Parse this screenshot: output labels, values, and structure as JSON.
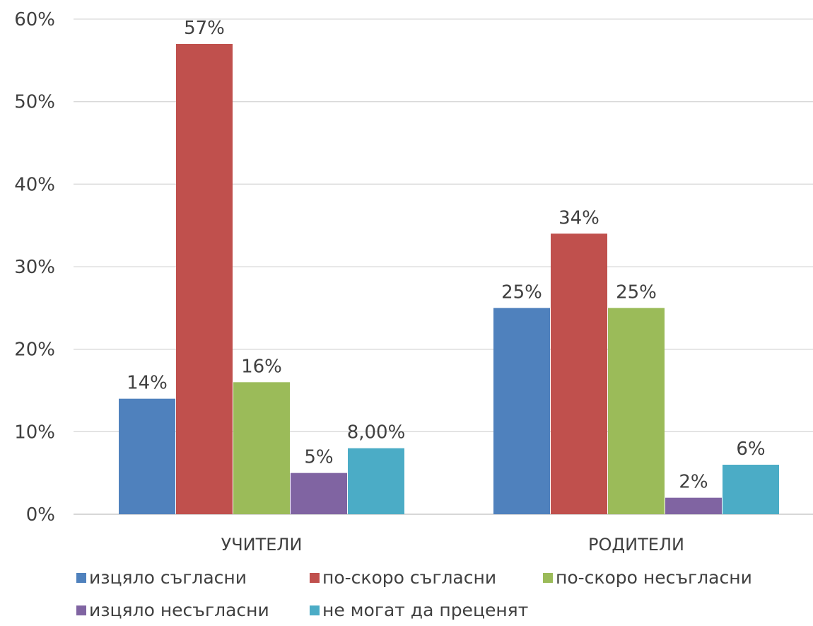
{
  "chart_data": {
    "type": "bar",
    "title": "",
    "xlabel": "",
    "ylabel": "",
    "categories": [
      "УЧИТЕЛИ",
      "РОДИТЕЛИ"
    ],
    "ylim": [
      0,
      60
    ],
    "yticks": [
      0,
      10,
      20,
      30,
      40,
      50,
      60
    ],
    "ytick_labels": [
      "0%",
      "10%",
      "20%",
      "30%",
      "40%",
      "50%",
      "60%"
    ],
    "grid": true,
    "legend_position": "bottom",
    "series": [
      {
        "name": "изцяло съгласни",
        "color": "#4f81bd",
        "values": [
          14,
          25
        ],
        "labels": [
          "14%",
          "25%"
        ]
      },
      {
        "name": "по-скоро съгласни",
        "color": "#c0504d",
        "values": [
          57,
          34
        ],
        "labels": [
          "57%",
          "34%"
        ]
      },
      {
        "name": "по-скоро несъгласни",
        "color": "#9bbb59",
        "values": [
          16,
          25
        ],
        "labels": [
          "16%",
          "25%"
        ]
      },
      {
        "name": "изцяло несъгласни",
        "color": "#8064a2",
        "values": [
          5,
          2
        ],
        "labels": [
          "5%",
          "2%"
        ]
      },
      {
        "name": "не могат да преценят",
        "color": "#4bacc6",
        "values": [
          8,
          6
        ],
        "labels": [
          "8,00%",
          "6%"
        ]
      }
    ]
  }
}
